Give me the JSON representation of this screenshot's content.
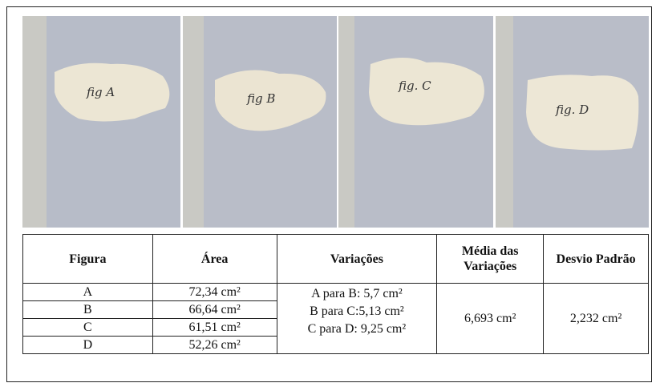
{
  "photos": [
    {
      "label": "fig A"
    },
    {
      "label": "fig B"
    },
    {
      "label": "fig. C"
    },
    {
      "label": "fig. D"
    }
  ],
  "table": {
    "header": [
      "Figura",
      "Área",
      "Variações",
      "Média das Variações",
      "Desvio Padrão"
    ],
    "rows": [
      [
        "A",
        "72,34 cm²"
      ],
      [
        "B",
        "66,64 cm²"
      ],
      [
        "C",
        "61,51 cm²"
      ],
      [
        "D",
        "52,26 cm²"
      ]
    ],
    "variations": [
      "A para B: 5,7 cm²",
      "B para C:5,13 cm²",
      "C para D: 9,25 cm²"
    ],
    "mean": "6,693 cm²",
    "std_dev": "2,232 cm²"
  }
}
